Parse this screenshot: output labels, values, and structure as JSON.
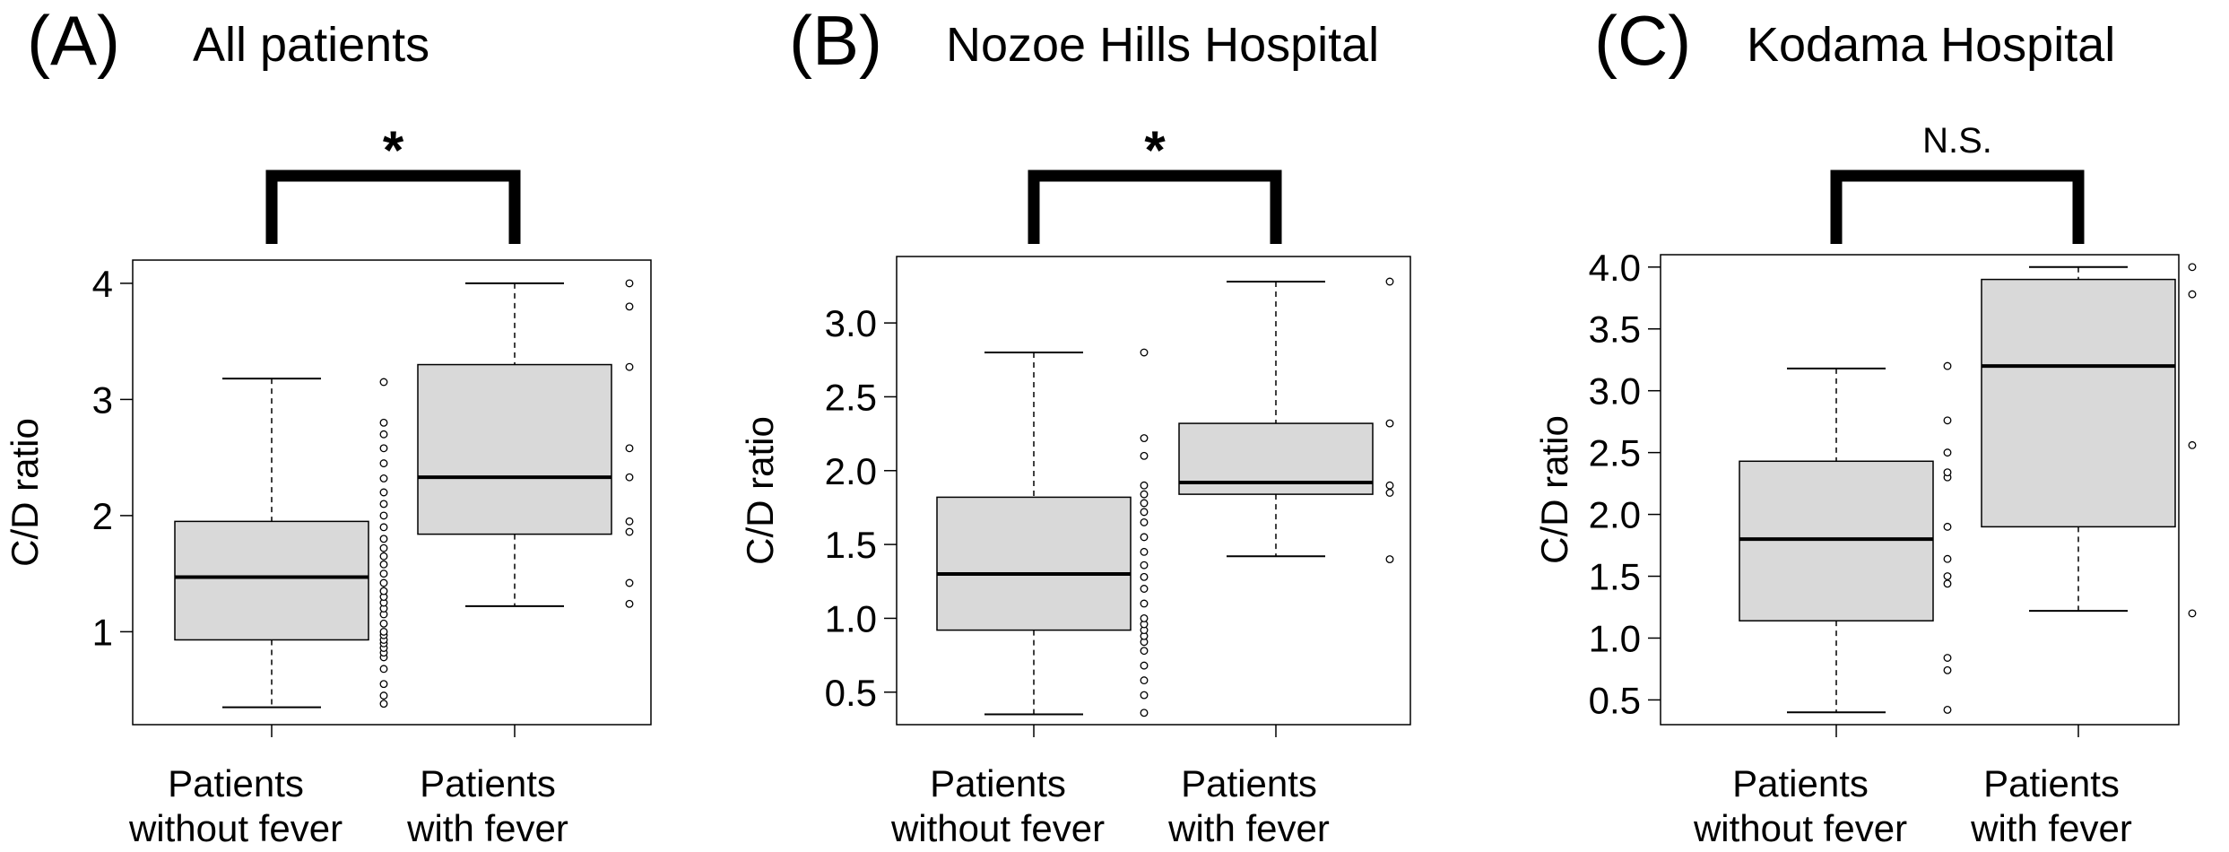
{
  "chart_data": [
    {
      "type": "box",
      "panel_label": "(A)",
      "title": "All patients",
      "ylabel": "C/D ratio",
      "ylim": [
        0.2,
        4.2
      ],
      "yticks": [
        1,
        2,
        3,
        4
      ],
      "ytick_labels": [
        "1",
        "2",
        "3",
        "4"
      ],
      "categories": [
        "Patients without fever",
        "Patients with fever"
      ],
      "category_lines": [
        [
          "Patients",
          "without fever"
        ],
        [
          "Patients",
          "with fever"
        ]
      ],
      "boxes": [
        {
          "whisker_low": 0.35,
          "q1": 0.93,
          "median": 1.47,
          "q3": 1.95,
          "whisker_high": 3.18
        },
        {
          "whisker_low": 1.22,
          "q1": 1.84,
          "median": 2.33,
          "q3": 3.3,
          "whisker_high": 4.0
        }
      ],
      "points": [
        [
          0.38,
          0.45,
          0.55,
          0.68,
          0.78,
          0.82,
          0.86,
          0.9,
          0.93,
          0.97,
          1.0,
          1.07,
          1.15,
          1.2,
          1.25,
          1.3,
          1.35,
          1.42,
          1.5,
          1.58,
          1.65,
          1.72,
          1.8,
          1.9,
          2.0,
          2.1,
          2.2,
          2.32,
          2.45,
          2.58,
          2.7,
          2.8,
          3.15
        ],
        [
          1.24,
          1.42,
          1.86,
          1.95,
          2.33,
          2.58,
          3.28,
          3.8,
          4.0
        ]
      ],
      "significance": "*"
    },
    {
      "type": "box",
      "panel_label": "(B)",
      "title": "Nozoe Hills Hospital",
      "ylabel": "C/D ratio",
      "ylim": [
        0.28,
        3.45
      ],
      "yticks": [
        0.5,
        1.0,
        1.5,
        2.0,
        2.5,
        3.0
      ],
      "ytick_labels": [
        "0.5",
        "1.0",
        "1.5",
        "2.0",
        "2.5",
        "3.0"
      ],
      "categories": [
        "Patients without fever",
        "Patients with fever"
      ],
      "category_lines": [
        [
          "Patients",
          "without fever"
        ],
        [
          "Patients",
          "with fever"
        ]
      ],
      "boxes": [
        {
          "whisker_low": 0.35,
          "q1": 0.92,
          "median": 1.3,
          "q3": 1.82,
          "whisker_high": 2.8
        },
        {
          "whisker_low": 1.42,
          "q1": 1.84,
          "median": 1.92,
          "q3": 2.32,
          "whisker_high": 3.28
        }
      ],
      "points": [
        [
          0.36,
          0.48,
          0.58,
          0.68,
          0.78,
          0.84,
          0.88,
          0.92,
          0.96,
          1.0,
          1.1,
          1.2,
          1.28,
          1.36,
          1.45,
          1.55,
          1.65,
          1.72,
          1.78,
          1.84,
          1.9,
          2.1,
          2.22,
          2.8
        ],
        [
          1.4,
          1.85,
          1.9,
          2.32,
          3.28
        ]
      ],
      "significance": "*"
    },
    {
      "type": "box",
      "panel_label": "(C)",
      "title": "Kodama Hospital",
      "ylabel": "C/D ratio",
      "ylim": [
        0.3,
        4.1
      ],
      "yticks": [
        0.5,
        1.0,
        1.5,
        2.0,
        2.5,
        3.0,
        3.5,
        4.0
      ],
      "ytick_labels": [
        "0.5",
        "1.0",
        "1.5",
        "2.0",
        "2.5",
        "3.0",
        "3.5",
        "4.0"
      ],
      "categories": [
        "Patients without fever",
        "Patients with fever"
      ],
      "category_lines": [
        [
          "Patients",
          "without fever"
        ],
        [
          "Patients",
          "with fever"
        ]
      ],
      "boxes": [
        {
          "whisker_low": 0.4,
          "q1": 1.14,
          "median": 1.8,
          "q3": 2.43,
          "whisker_high": 3.18
        },
        {
          "whisker_low": 1.22,
          "q1": 1.9,
          "median": 3.2,
          "q3": 3.9,
          "whisker_high": 4.0
        }
      ],
      "points": [
        [
          0.42,
          0.74,
          0.84,
          1.44,
          1.5,
          1.64,
          1.9,
          2.3,
          2.34,
          2.5,
          2.76,
          3.2
        ],
        [
          1.2,
          2.56,
          3.78,
          4.0
        ]
      ],
      "significance": "N.S."
    }
  ]
}
